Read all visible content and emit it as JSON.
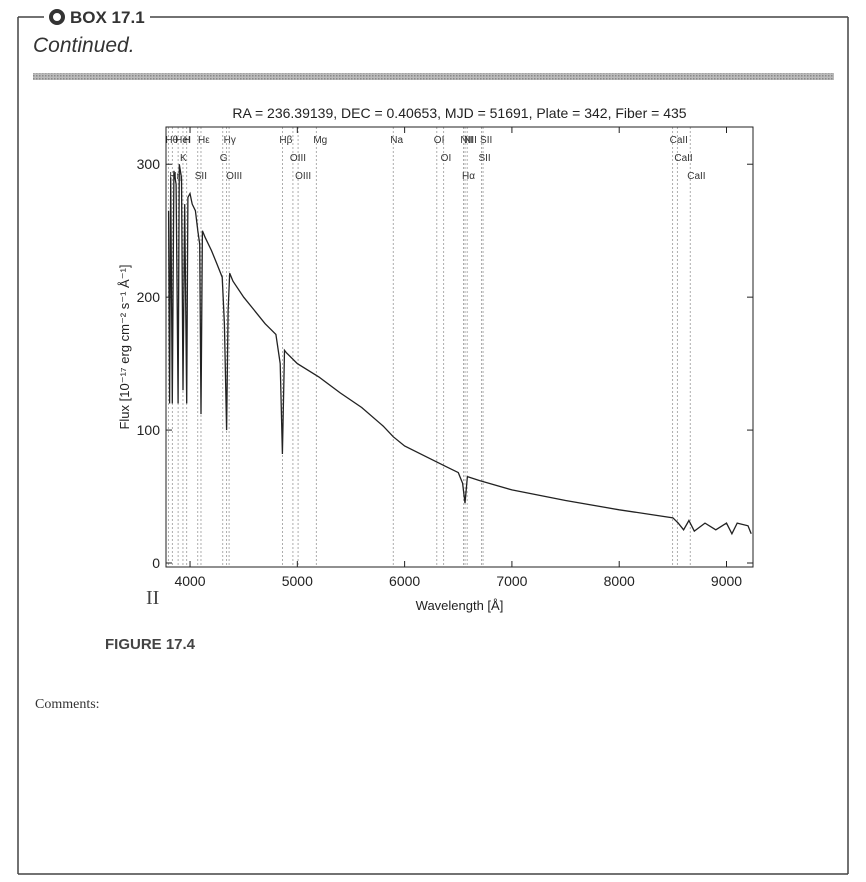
{
  "box": {
    "label": "BOX 17.1",
    "subtitle": "Continued."
  },
  "chart_data": {
    "type": "line",
    "title": "RA = 236.39139, DEC = 0.40653, MJD = 51691, Plate = 342, Fiber = 435",
    "x_label": "Wavelength [Å]",
    "y_label": "Flux [10⁻¹⁷ erg cm⁻² s⁻¹ Å⁻¹]",
    "xlim": [
      3776,
      9247
    ],
    "ylim": [
      -3,
      328
    ],
    "xticks": [
      4000,
      5000,
      6000,
      7000,
      8000,
      9000
    ],
    "yticks": [
      0,
      100,
      200,
      300
    ],
    "lines": [
      {
        "label": "Hθ",
        "x": 3798
      },
      {
        "label": "K",
        "x": 3934
      },
      {
        "label": "Hη",
        "x": 3835
      },
      {
        "label": "H",
        "x": 3969
      },
      {
        "label": "HeI",
        "x": 3889
      },
      {
        "label": "SII",
        "x": 4072
      },
      {
        "label": "Hε",
        "x": 4102
      },
      {
        "label": "G",
        "x": 4305
      },
      {
        "label": "Hγ",
        "x": 4341
      },
      {
        "label": "OIII",
        "x": 4364
      },
      {
        "label": "Hβ",
        "x": 4861
      },
      {
        "label": "OIII",
        "x": 4959
      },
      {
        "label": "OIII",
        "x": 5007
      },
      {
        "label": "Mg",
        "x": 5177
      },
      {
        "label": "Na",
        "x": 5894
      },
      {
        "label": "OI",
        "x": 6300
      },
      {
        "label": "OI",
        "x": 6364
      },
      {
        "label": "NII",
        "x": 6548
      },
      {
        "label": "Hα",
        "x": 6563
      },
      {
        "label": "NII",
        "x": 6583
      },
      {
        "label": "SII",
        "x": 6716
      },
      {
        "label": "SII",
        "x": 6731
      },
      {
        "label": "CaII",
        "x": 8498
      },
      {
        "label": "CaII",
        "x": 8542
      },
      {
        "label": "CaII",
        "x": 8662
      }
    ],
    "series": [
      {
        "name": "Flux",
        "color": "#222222",
        "x": [
          3800,
          3810,
          3820,
          3835,
          3850,
          3870,
          3889,
          3900,
          3920,
          3934,
          3950,
          3969,
          3980,
          4000,
          4020,
          4050,
          4072,
          4090,
          4102,
          4115,
          4140,
          4200,
          4250,
          4300,
          4320,
          4341,
          4355,
          4370,
          4400,
          4500,
          4600,
          4700,
          4800,
          4840,
          4861,
          4880,
          4900,
          5000,
          5200,
          5400,
          5600,
          5800,
          5894,
          6000,
          6200,
          6400,
          6500,
          6540,
          6563,
          6585,
          6700,
          7000,
          7500,
          8000,
          8500,
          8550,
          8600,
          8650,
          8700,
          8800,
          8900,
          9000,
          9050,
          9100,
          9200,
          9230
        ],
        "values": [
          265,
          120,
          290,
          120,
          295,
          285,
          120,
          300,
          290,
          130,
          270,
          120,
          275,
          278,
          270,
          265,
          250,
          240,
          112,
          250,
          245,
          235,
          225,
          215,
          180,
          100,
          190,
          218,
          212,
          200,
          190,
          180,
          172,
          150,
          82,
          160,
          158,
          150,
          140,
          128,
          117,
          103,
          95,
          88,
          80,
          72,
          68,
          60,
          45,
          65,
          62,
          55,
          47,
          40,
          34,
          30,
          25,
          32,
          24,
          30,
          25,
          30,
          22,
          30,
          28,
          22
        ]
      }
    ]
  },
  "figure": {
    "caption": "FIGURE 17.4",
    "mark": "II"
  },
  "comments": "Comments:"
}
